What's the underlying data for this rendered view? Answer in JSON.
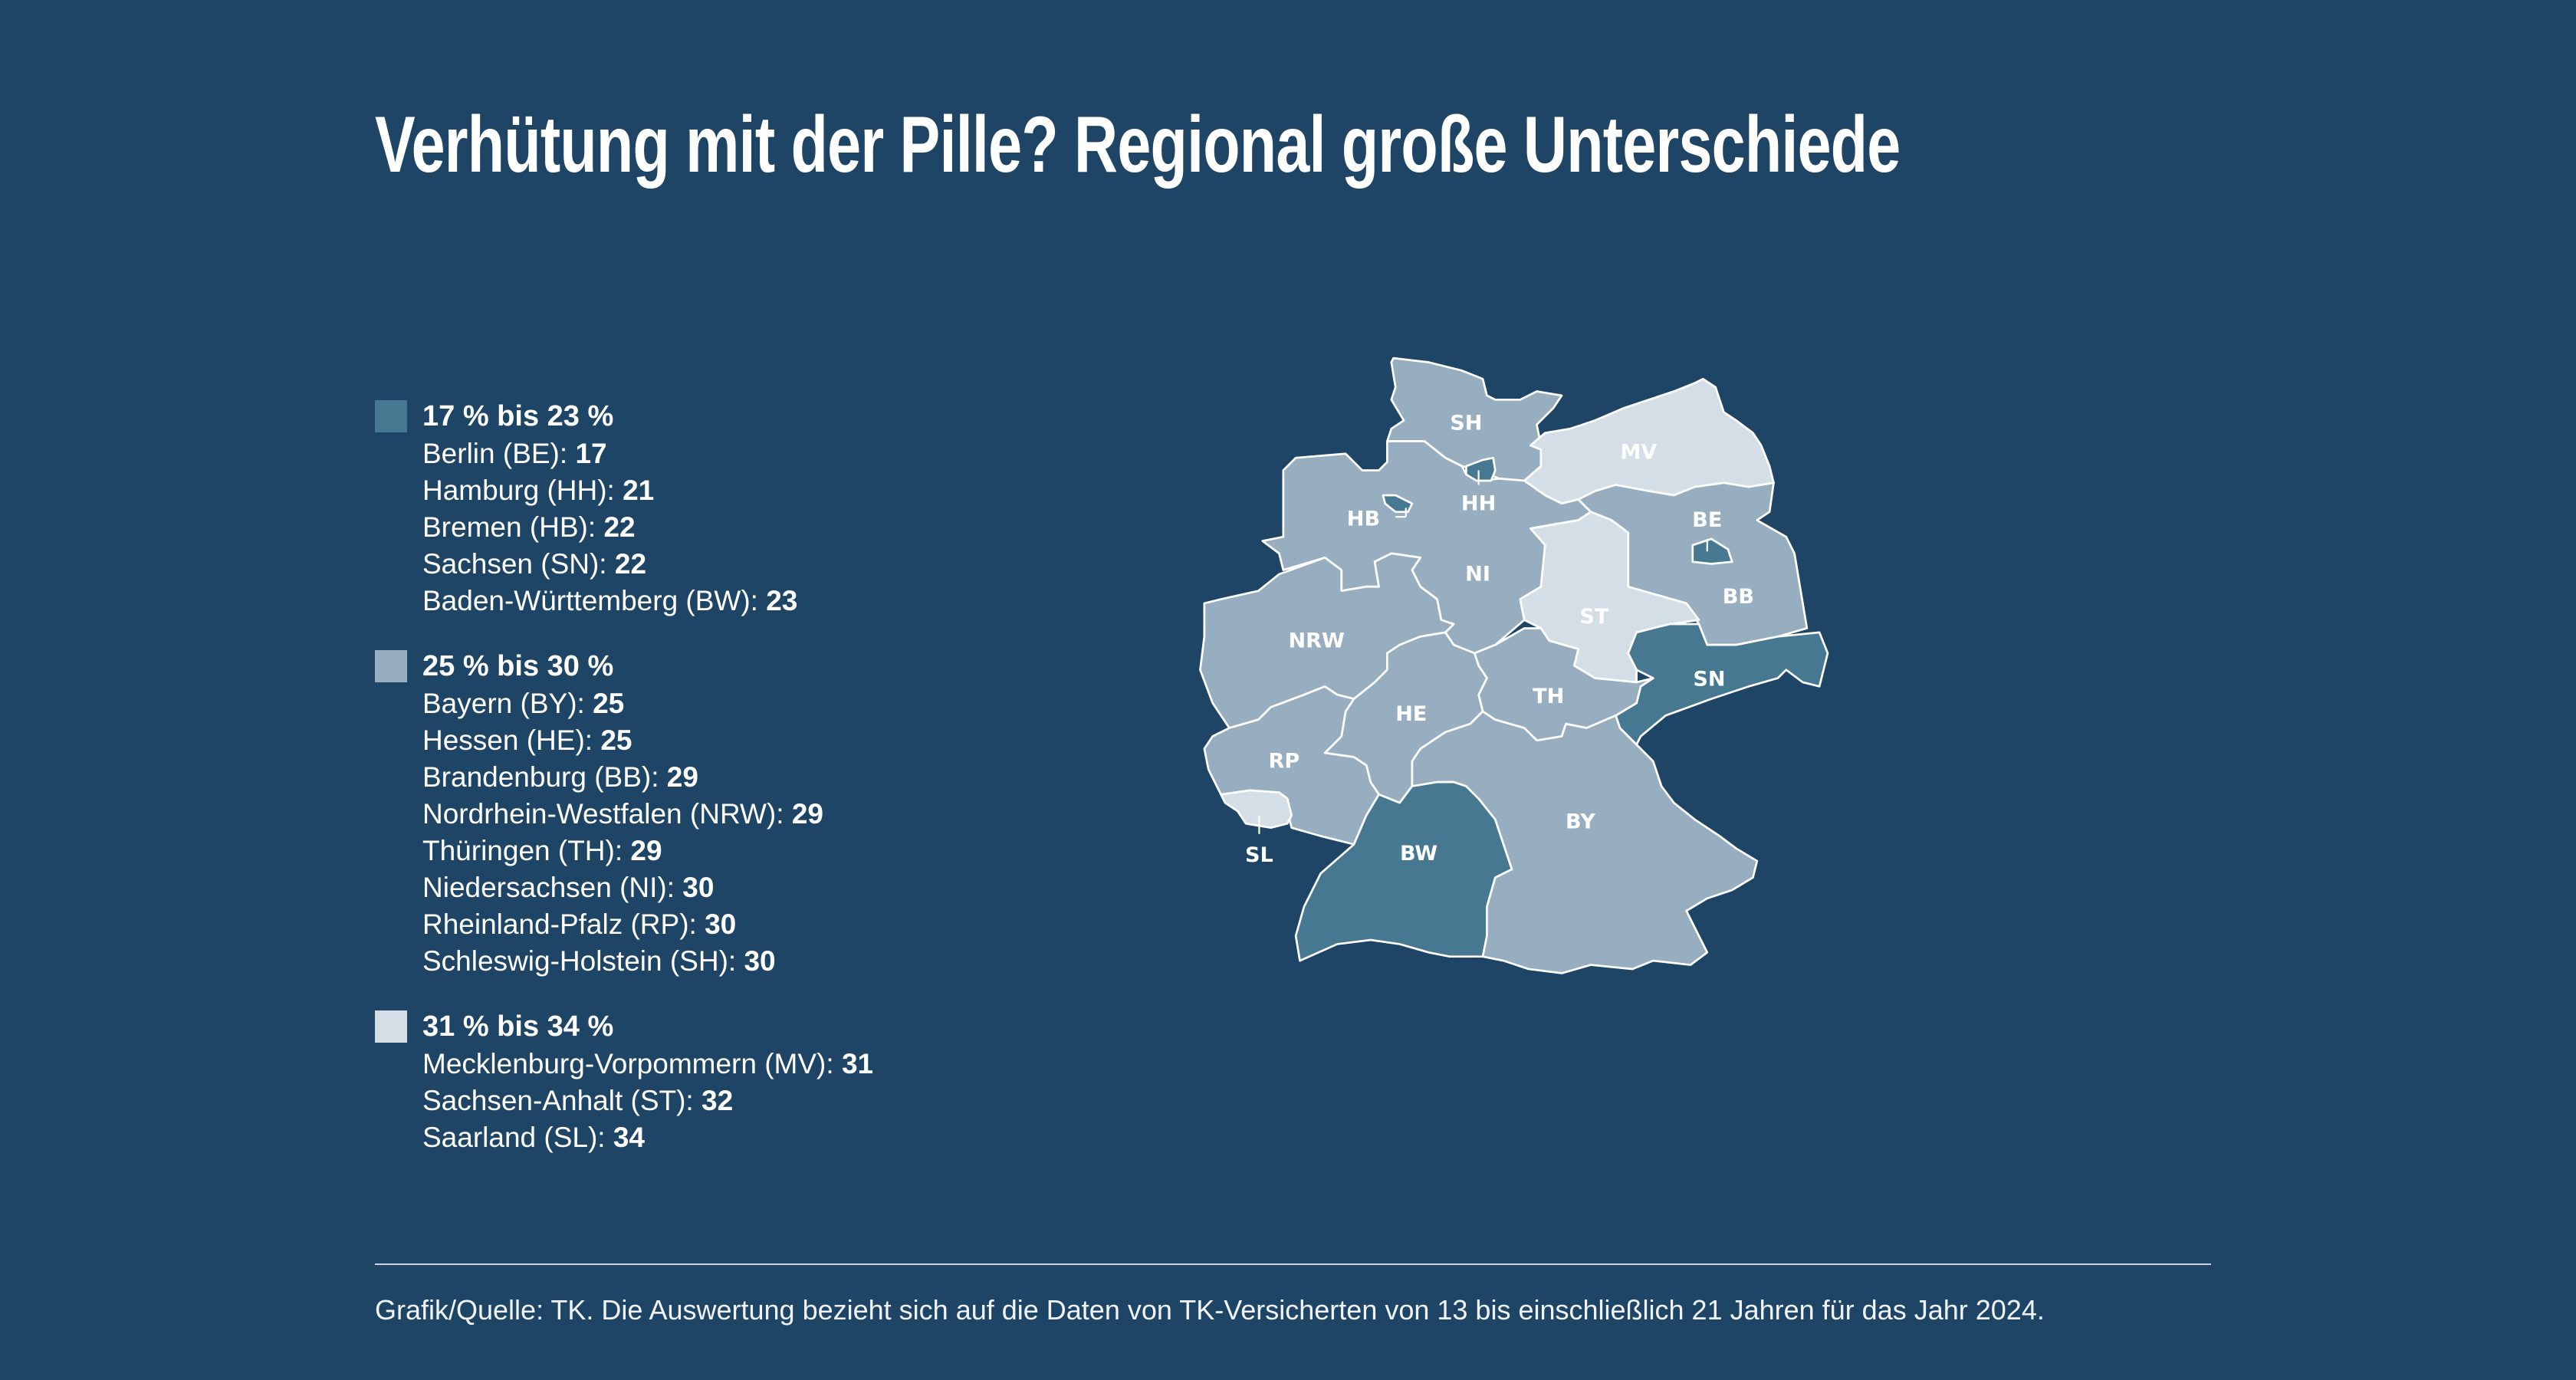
{
  "title": "Verhütung mit der Pille? Regional große Unterschiede",
  "colors": {
    "background": "#1f4566",
    "low": "#477891",
    "mid": "#97aec0",
    "high": "#d3dee6"
  },
  "legend": [
    {
      "label": "17 % bis 23 %",
      "color": "#477891",
      "items": [
        {
          "name": "Berlin (BE):",
          "value": "17"
        },
        {
          "name": "Hamburg (HH):",
          "value": "21"
        },
        {
          "name": "Bremen (HB):",
          "value": "22"
        },
        {
          "name": "Sachsen (SN):",
          "value": "22"
        },
        {
          "name": "Baden-Württemberg (BW):",
          "value": "23"
        }
      ]
    },
    {
      "label": "25 % bis 30 %",
      "color": "#97aec0",
      "items": [
        {
          "name": "Bayern (BY):",
          "value": "25"
        },
        {
          "name": "Hessen (HE):",
          "value": "25"
        },
        {
          "name": "Brandenburg (BB):",
          "value": "29"
        },
        {
          "name": "Nordrhein-Westfalen (NRW):",
          "value": "29"
        },
        {
          "name": "Thüringen (TH):",
          "value": "29"
        },
        {
          "name": "Niedersachsen (NI):",
          "value": "30"
        },
        {
          "name": "Rheinland-Pfalz (RP):",
          "value": "30"
        },
        {
          "name": "Schleswig-Holstein (SH):",
          "value": "30"
        }
      ]
    },
    {
      "label": "31 % bis 34 %",
      "color": "#d3dee6",
      "items": [
        {
          "name": "Mecklenburg-Vorpommern (MV):",
          "value": "31"
        },
        {
          "name": "Sachsen-Anhalt (ST):",
          "value": "32"
        },
        {
          "name": "Saarland (SL):",
          "value": "34"
        }
      ]
    }
  ],
  "map": {
    "labels": {
      "SH": "SH",
      "HH": "HH",
      "HB": "HB",
      "MV": "MV",
      "BE": "BE",
      "BB": "BB",
      "NI": "NI",
      "ST": "ST",
      "NRW": "NRW",
      "SN": "SN",
      "TH": "TH",
      "HE": "HE",
      "RP": "RP",
      "SL": "SL",
      "BW": "BW",
      "BY": "BY"
    },
    "values": {
      "BE": 17,
      "HH": 21,
      "HB": 22,
      "SN": 22,
      "BW": 23,
      "BY": 25,
      "HE": 25,
      "BB": 29,
      "NRW": 29,
      "TH": 29,
      "NI": 30,
      "RP": 30,
      "SH": 30,
      "MV": 31,
      "ST": 32,
      "SL": 34
    }
  },
  "source": "Grafik/Quelle: TK. Die Auswertung bezieht sich auf die Daten von TK-Versicherten von 13 bis einschließlich 21 Jahren für das Jahr 2024."
}
